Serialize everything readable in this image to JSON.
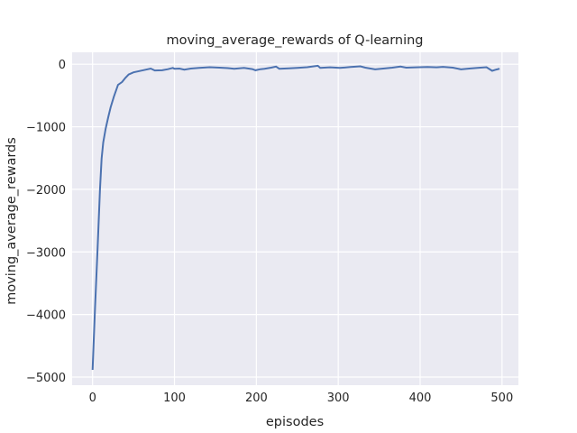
{
  "chart_data": {
    "type": "line",
    "title": "moving_average_rewards of Q-learning",
    "xlabel": "episodes",
    "ylabel": "moving_average_rewards",
    "xlim": [
      -25,
      520
    ],
    "ylim": [
      -5130,
      190
    ],
    "xticks": [
      0,
      100,
      200,
      300,
      400,
      500
    ],
    "yticks": [
      0,
      -1000,
      -2000,
      -3000,
      -4000,
      -5000
    ],
    "xtick_labels": [
      "0",
      "100",
      "200",
      "300",
      "400",
      "500"
    ],
    "ytick_labels": [
      "0",
      "−1000",
      "−2000",
      "−3000",
      "−4000",
      "−5000"
    ],
    "grid": true,
    "background": "#eaeaf2",
    "series": [
      {
        "color": "#4c72b0",
        "x": [
          0,
          3,
          6,
          9,
          11,
          13,
          16,
          19,
          22,
          26,
          31,
          36,
          40,
          44,
          50,
          55,
          62,
          71,
          76,
          85,
          92,
          98,
          100,
          106,
          112,
          120,
          130,
          143,
          155,
          165,
          173,
          185,
          195,
          199,
          205,
          210,
          218,
          224,
          228,
          240,
          250,
          262,
          275,
          278,
          290,
          302,
          315,
          327,
          333,
          345,
          355,
          366,
          376,
          383,
          395,
          409,
          420,
          428,
          440,
          450,
          460,
          470,
          481,
          488,
          493,
          497
        ],
        "y": [
          -4885,
          -3900,
          -2960,
          -2000,
          -1510,
          -1250,
          -1030,
          -850,
          -690,
          -520,
          -330,
          -285,
          -220,
          -165,
          -130,
          -115,
          -95,
          -70,
          -100,
          -97,
          -80,
          -60,
          -72,
          -70,
          -87,
          -70,
          -60,
          -48,
          -55,
          -62,
          -72,
          -60,
          -78,
          -97,
          -80,
          -72,
          -55,
          -38,
          -72,
          -65,
          -58,
          -48,
          -25,
          -58,
          -50,
          -60,
          -45,
          -34,
          -55,
          -82,
          -70,
          -55,
          -38,
          -55,
          -50,
          -45,
          -50,
          -42,
          -55,
          -82,
          -70,
          -60,
          -48,
          -106,
          -85,
          -72
        ]
      }
    ]
  }
}
